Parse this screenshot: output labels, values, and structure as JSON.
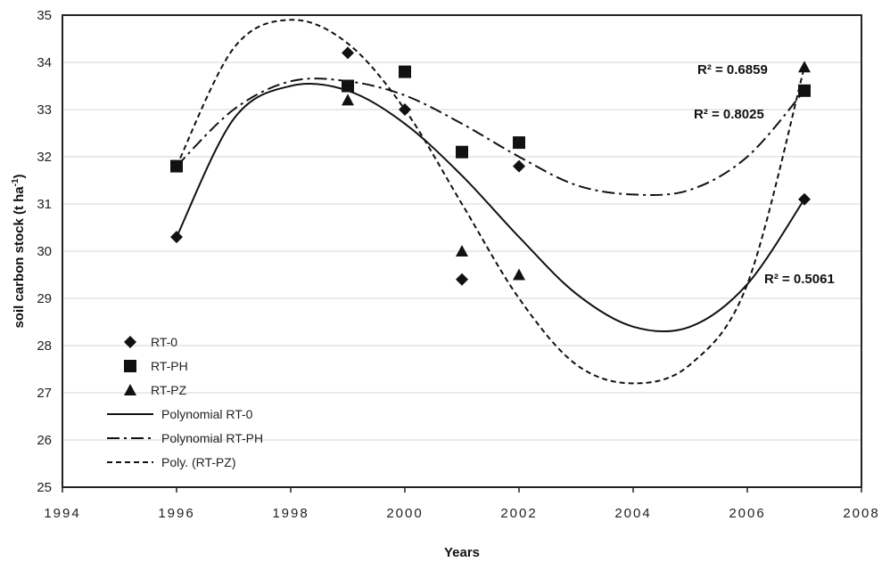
{
  "chart_data": {
    "type": "scatter",
    "xlabel": "Years",
    "ylabel": "soil carbon stock  (t ha",
    "ylabel_sup": "-1",
    "ylabel_end": ")",
    "xlim": [
      1994,
      2008
    ],
    "ylim": [
      25,
      35
    ],
    "x_ticks": [
      1994,
      1996,
      1998,
      2000,
      2002,
      2004,
      2006,
      2008
    ],
    "y_ticks": [
      25,
      26,
      27,
      28,
      29,
      30,
      31,
      32,
      33,
      34,
      35
    ],
    "grid": "horizontal",
    "legend_position": "bottom-left",
    "series": [
      {
        "name": "RT-0",
        "marker": "diamond",
        "x": [
          1996,
          1999,
          2000,
          2001,
          2002,
          2007
        ],
        "y": [
          30.3,
          34.2,
          33.0,
          29.4,
          31.8,
          31.1
        ]
      },
      {
        "name": "RT-PH",
        "marker": "square",
        "x": [
          1996,
          1999,
          2000,
          2001,
          2002,
          2007
        ],
        "y": [
          31.8,
          33.5,
          33.8,
          32.1,
          32.3,
          33.4
        ]
      },
      {
        "name": "RT-PZ",
        "marker": "triangle",
        "x": [
          1999,
          2001,
          2002,
          2007
        ],
        "y": [
          33.2,
          30.0,
          29.5,
          33.9
        ]
      }
    ],
    "trendlines": [
      {
        "name": "Polynomial RT-0",
        "style": "solid",
        "x": [
          1996,
          1997,
          1998,
          1999,
          2000,
          2001,
          2002,
          2003,
          2004,
          2005,
          2006,
          2007
        ],
        "y": [
          30.3,
          32.8,
          33.5,
          33.4,
          32.7,
          31.6,
          30.3,
          29.1,
          28.4,
          28.4,
          29.3,
          31.1
        ]
      },
      {
        "name": "Polynomial RT-PH",
        "style": "dash-dot",
        "x": [
          1996,
          1997,
          1998,
          1999,
          2000,
          2001,
          2002,
          2003,
          2004,
          2005,
          2006,
          2007
        ],
        "y": [
          31.8,
          33.0,
          33.6,
          33.6,
          33.3,
          32.7,
          32.0,
          31.4,
          31.2,
          31.3,
          32.0,
          33.4
        ]
      },
      {
        "name": "Poly. (RT-PZ)",
        "style": "dashed",
        "x": [
          1996,
          1997,
          1998,
          1999,
          2000,
          2001,
          2002,
          2003,
          2004,
          2005,
          2006,
          2007
        ],
        "y": [
          31.8,
          34.3,
          34.9,
          34.4,
          33.0,
          31.0,
          29.0,
          27.6,
          27.2,
          27.6,
          29.3,
          33.9
        ]
      }
    ],
    "annotations": [
      {
        "text": "R² = 0.6859"
      },
      {
        "text": "R² = 0.8025"
      },
      {
        "text": "R² = 0.5061"
      }
    ]
  }
}
